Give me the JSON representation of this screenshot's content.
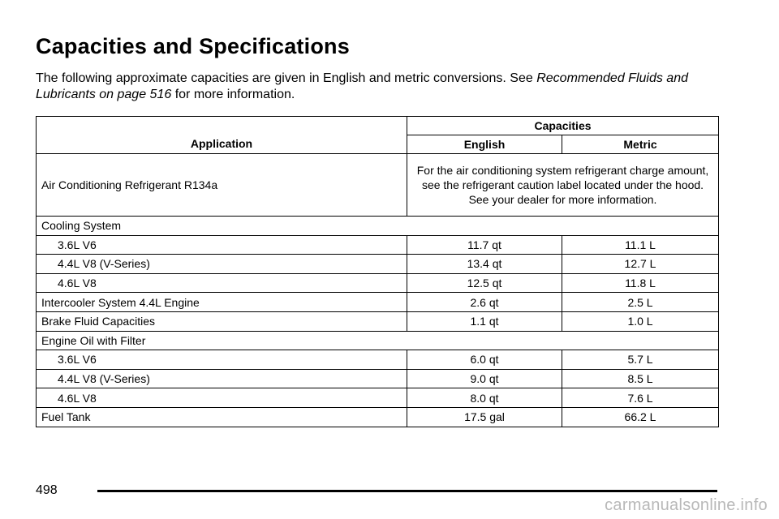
{
  "header": {
    "title": "Capacities and Specifications"
  },
  "intro": {
    "text": "The following approximate capacities are given in English and metric conversions. See",
    "link": "Recommended Fluids and Lubricants on page 516",
    "tail": "for more information."
  },
  "table": {
    "columns": {
      "application": "Application",
      "group": "Capacities",
      "english": "English",
      "metric": "Metric"
    },
    "rows": [
      {
        "cells": [
          "Air Conditioning Refrigerant R134a",
          "For the air conditioning system refrigerant charge amount, see the refrigerant caution label located under the hood. See your dealer for more information."
        ]
      },
      {
        "label": "Cooling System",
        "items": [
          [
            "3.6L V6",
            "11.7 qt",
            "11.1 L"
          ],
          [
            "4.4L V8 (V-Series)",
            "13.4 qt",
            "12.7 L"
          ],
          [
            "4.6L V8",
            "12.5 qt",
            "11.8 L"
          ]
        ]
      },
      {
        "cells": [
          "Intercooler System 4.4L Engine",
          "2.6 qt",
          "2.5 L"
        ]
      },
      {
        "cells": [
          "Brake Fluid Capacities",
          "1.1 qt",
          "1.0 L"
        ]
      },
      {
        "label": "Engine Oil with Filter",
        "items": [
          [
            "3.6L V6",
            "6.0 qt",
            "5.7 L"
          ],
          [
            "4.4L V8 (V-Series)",
            "9.0 qt",
            "8.5 L"
          ],
          [
            "4.6L V8",
            "8.0 qt",
            "7.6 L"
          ]
        ]
      },
      {
        "cells": [
          "Fuel Tank",
          "17.5 gal",
          "66.2 L"
        ]
      }
    ]
  },
  "footer": {
    "page": "498",
    "watermark": "carmanualsonline.info"
  }
}
